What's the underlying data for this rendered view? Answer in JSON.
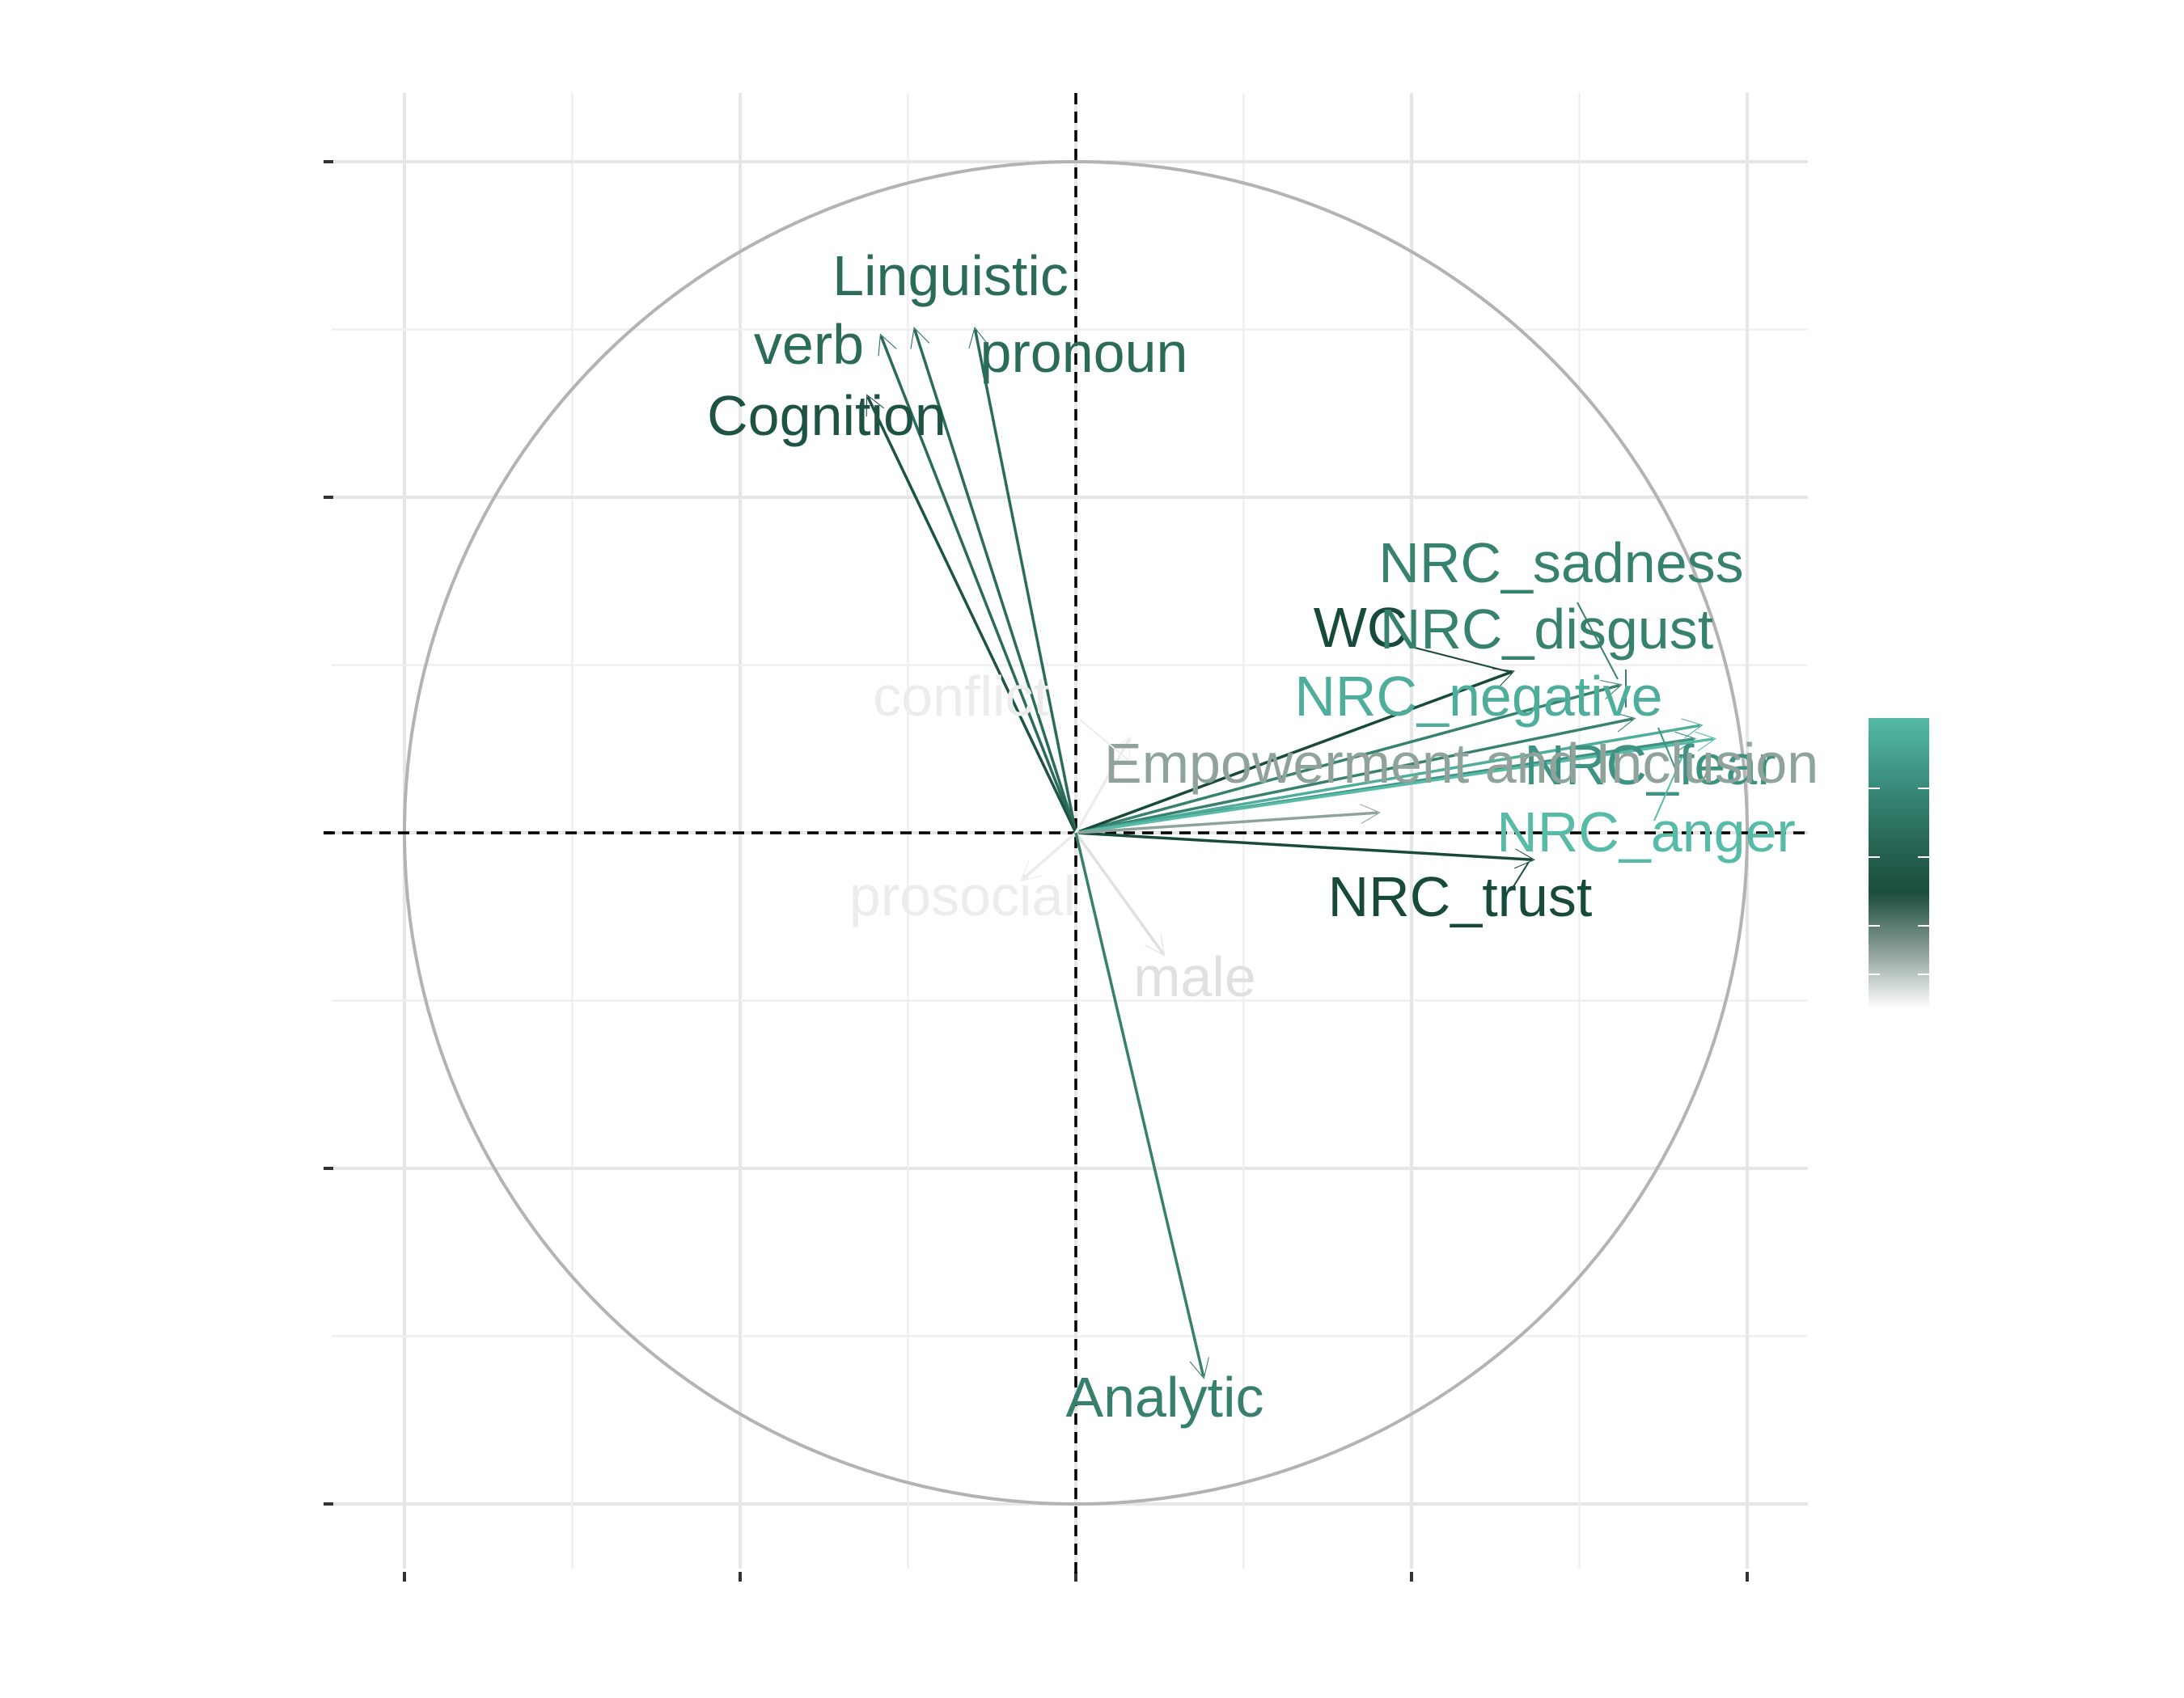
{
  "chart_data": {
    "type": "correlation-circle",
    "title": "",
    "xlabel": "",
    "ylabel": "",
    "xlim": [
      -1.1,
      1.1
    ],
    "ylim": [
      -1.1,
      1.05
    ],
    "x_ticks": [
      -1,
      -0.5,
      0,
      0.5,
      1
    ],
    "y_ticks": [
      -1,
      -0.5,
      0,
      0.5,
      1
    ],
    "grid": true,
    "reference_lines": "dashed at x=0 and y=0",
    "unit_circle": true,
    "colorbar": {
      "placement": "right",
      "colors": [
        "#ffffff",
        "#8c9f97",
        "#1b4d3e",
        "#2a6b59",
        "#3d9282",
        "#55b9a6"
      ]
    },
    "variables": [
      {
        "name": "Linguistic",
        "x": -0.24,
        "y": 0.75,
        "color": "#2b6b5a"
      },
      {
        "name": "verb",
        "x": -0.29,
        "y": 0.74,
        "color": "#2b6b5a"
      },
      {
        "name": "pronoun",
        "x": -0.15,
        "y": 0.75,
        "color": "#2b6b5a"
      },
      {
        "name": "Cognition",
        "x": -0.31,
        "y": 0.65,
        "color": "#1e5245"
      },
      {
        "name": "NRC_sadness",
        "x": 0.81,
        "y": 0.22,
        "color": "#37816f"
      },
      {
        "name": "WC",
        "x": 0.65,
        "y": 0.24,
        "color": "#184a3c"
      },
      {
        "name": "NRC_disgust",
        "x": 0.83,
        "y": 0.17,
        "color": "#37816f"
      },
      {
        "name": "NRC_negative",
        "x": 0.93,
        "y": 0.16,
        "color": "#4fae9b"
      },
      {
        "name": "NRC_fear",
        "x": 0.92,
        "y": 0.14,
        "color": "#3d9282"
      },
      {
        "name": "NRC_anger",
        "x": 0.95,
        "y": 0.14,
        "color": "#57bba8"
      },
      {
        "name": "NRC_trust",
        "x": 0.68,
        "y": -0.04,
        "color": "#184a3c"
      },
      {
        "name": "Empowerment and Inclusion",
        "x": 0.45,
        "y": 0.03,
        "color": "#8fa39b"
      },
      {
        "name": "conflict",
        "x": 0.08,
        "y": 0.14,
        "color": "#ececec"
      },
      {
        "name": "prosocial",
        "x": -0.08,
        "y": -0.07,
        "color": "#ececec"
      },
      {
        "name": "male",
        "x": 0.13,
        "y": -0.18,
        "color": "#e0e0e0"
      },
      {
        "name": "Analytic",
        "x": 0.19,
        "y": -0.81,
        "color": "#37806e"
      }
    ]
  }
}
